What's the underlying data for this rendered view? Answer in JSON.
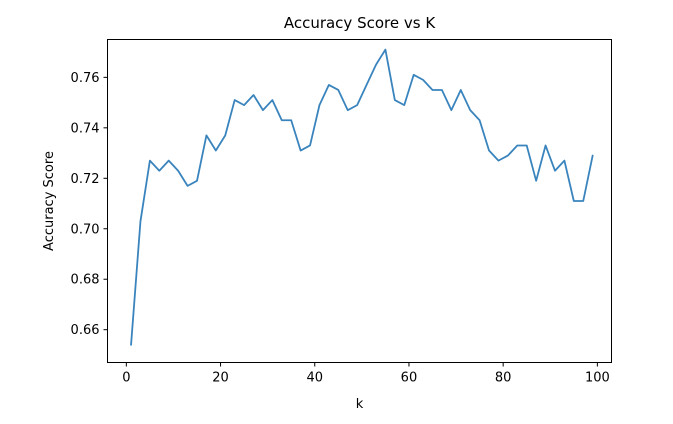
{
  "chart_data": {
    "type": "line",
    "title": "Accuracy Score vs K",
    "xlabel": "k",
    "ylabel": "Accuracy Score",
    "xlim": [
      -4,
      103
    ],
    "ylim": [
      0.647,
      0.775
    ],
    "xticks": [
      0,
      20,
      40,
      60,
      80,
      100
    ],
    "yticks": [
      0.66,
      0.68,
      0.7,
      0.72,
      0.74,
      0.76
    ],
    "xtick_labels": [
      "0",
      "20",
      "40",
      "60",
      "80",
      "100"
    ],
    "ytick_labels": [
      "0.66",
      "0.68",
      "0.70",
      "0.72",
      "0.74",
      "0.76"
    ],
    "grid": false,
    "line_color": "#3a84bd",
    "series": [
      {
        "x": [
          1,
          3,
          5,
          7,
          9,
          11,
          13,
          15,
          17,
          19,
          21,
          23,
          25,
          27,
          29,
          31,
          33,
          35,
          37,
          39,
          41,
          43,
          45,
          47,
          49,
          51,
          53,
          55,
          57,
          59,
          61,
          63,
          65,
          67,
          69,
          71,
          73,
          75,
          77,
          79,
          81,
          83,
          85,
          87,
          89,
          91,
          93,
          95,
          97,
          99
        ],
        "values": [
          0.654,
          0.703,
          0.727,
          0.723,
          0.727,
          0.723,
          0.717,
          0.719,
          0.737,
          0.731,
          0.737,
          0.751,
          0.749,
          0.753,
          0.747,
          0.751,
          0.743,
          0.743,
          0.731,
          0.733,
          0.749,
          0.757,
          0.755,
          0.747,
          0.749,
          0.757,
          0.765,
          0.771,
          0.751,
          0.749,
          0.761,
          0.759,
          0.755,
          0.755,
          0.747,
          0.755,
          0.747,
          0.743,
          0.731,
          0.727,
          0.729,
          0.733,
          0.733,
          0.719,
          0.733,
          0.723,
          0.727,
          0.711,
          0.711,
          0.729
        ]
      }
    ]
  }
}
